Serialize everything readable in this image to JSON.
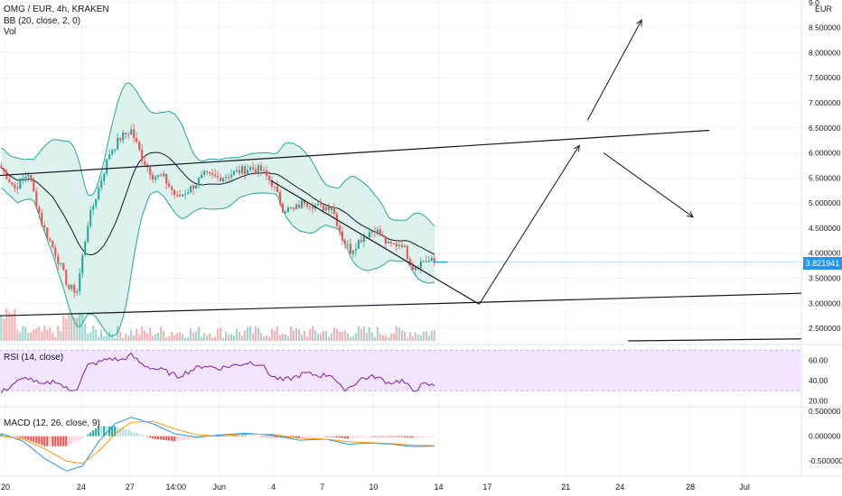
{
  "header": {
    "symbol": "OMG / EUR, 4h, KRAKEN",
    "bb_label": "BB (20, close, 2, 0)",
    "vol_label": "Vol",
    "currency": "EUR"
  },
  "current_price": "3.821941",
  "rsi_label": "RSI (14, close)",
  "macd_label": "MACD (12, 26, close, 9)",
  "colors": {
    "up": "#26a69a",
    "down": "#ef5350",
    "bb_band": "#26a69a",
    "bb_fill": "#d5efe9",
    "rsi_line": "#7b1fa2",
    "rsi_band": "#f3e5ff",
    "macd_line": "#2196f3",
    "signal_line": "#ff9800",
    "accent": "#2196f3"
  },
  "chart_data": [
    {
      "type": "candlestick",
      "x_tick_labels": [
        "20",
        "24",
        "27",
        "14:00",
        "Jun",
        "4",
        "7",
        "10",
        "14",
        "17",
        "21",
        "24",
        "28",
        "Jul"
      ],
      "y_tick_labels": [
        "2.500000",
        "3.000000",
        "3.500000",
        "4.000000",
        "4.500000",
        "5.000000",
        "5.500000",
        "6.000000",
        "6.500000",
        "7.000000",
        "7.500000",
        "8.000000",
        "8.500000",
        "9.0"
      ],
      "ylim": [
        2.25,
        9.05
      ],
      "y_ticks": [
        2.5,
        3.0,
        3.5,
        4.0,
        4.5,
        5.0,
        5.5,
        6.0,
        6.5,
        7.0,
        7.5,
        8.0,
        8.5,
        9.0
      ],
      "x_tick_bars": [
        2,
        30,
        48,
        65,
        81,
        101,
        119,
        138,
        162,
        180,
        209,
        229,
        255,
        275
      ],
      "bars_total": 296,
      "path_anchors": [
        {
          "bar": 0,
          "price": 5.7
        },
        {
          "bar": 5,
          "price": 5.3
        },
        {
          "bar": 10,
          "price": 5.6
        },
        {
          "bar": 15,
          "price": 4.6
        },
        {
          "bar": 20,
          "price": 4.0
        },
        {
          "bar": 25,
          "price": 3.3
        },
        {
          "bar": 28,
          "price": 3.25
        },
        {
          "bar": 32,
          "price": 4.6
        },
        {
          "bar": 36,
          "price": 5.3
        },
        {
          "bar": 40,
          "price": 6.0
        },
        {
          "bar": 44,
          "price": 6.3
        },
        {
          "bar": 48,
          "price": 6.45
        },
        {
          "bar": 52,
          "price": 5.9
        },
        {
          "bar": 56,
          "price": 5.55
        },
        {
          "bar": 60,
          "price": 5.5
        },
        {
          "bar": 65,
          "price": 5.1
        },
        {
          "bar": 70,
          "price": 5.3
        },
        {
          "bar": 75,
          "price": 5.55
        },
        {
          "bar": 80,
          "price": 5.5
        },
        {
          "bar": 86,
          "price": 5.6
        },
        {
          "bar": 92,
          "price": 5.7
        },
        {
          "bar": 96,
          "price": 5.65
        },
        {
          "bar": 100,
          "price": 5.4
        },
        {
          "bar": 104,
          "price": 4.9
        },
        {
          "bar": 108,
          "price": 4.85
        },
        {
          "bar": 112,
          "price": 5.05
        },
        {
          "bar": 118,
          "price": 4.9
        },
        {
          "bar": 122,
          "price": 4.95
        },
        {
          "bar": 126,
          "price": 4.3
        },
        {
          "bar": 129,
          "price": 4.05
        },
        {
          "bar": 133,
          "price": 4.3
        },
        {
          "bar": 138,
          "price": 4.5
        },
        {
          "bar": 143,
          "price": 4.15
        },
        {
          "bar": 148,
          "price": 4.2
        },
        {
          "bar": 152,
          "price": 3.72
        },
        {
          "bar": 156,
          "price": 3.85
        },
        {
          "bar": 160,
          "price": 3.82
        }
      ],
      "volume_note": "volume histogram at bottom of main pane",
      "drawings": [
        {
          "from": {
            "bar": 0,
            "price": 5.55
          },
          "to": {
            "bar": 262,
            "price": 6.45
          },
          "kind": "line"
        },
        {
          "from": {
            "bar": 0,
            "price": 2.75
          },
          "to": {
            "bar": 296,
            "price": 3.2
          },
          "kind": "line"
        },
        {
          "from": {
            "bar": 100,
            "price": 5.45
          },
          "to": {
            "bar": 177,
            "price": 2.98
          },
          "kind": "line"
        },
        {
          "from": {
            "bar": 177,
            "price": 2.98
          },
          "to": {
            "bar": 214,
            "price": 6.15
          },
          "kind": "arrow"
        },
        {
          "from": {
            "bar": 217,
            "price": 6.65
          },
          "to": {
            "bar": 237,
            "price": 8.65
          },
          "kind": "arrow"
        },
        {
          "from": {
            "bar": 223,
            "price": 6.0
          },
          "to": {
            "bar": 256,
            "price": 4.72
          },
          "kind": "arrow"
        },
        {
          "from": {
            "bar": 232,
            "price": 2.25
          },
          "to": {
            "bar": 296,
            "price": 2.29
          },
          "kind": "line"
        }
      ]
    },
    {
      "type": "line",
      "name": "RSI",
      "y_tick_labels": [
        "20.00",
        "40.00",
        "60.00"
      ],
      "y_ticks": [
        20,
        40,
        60
      ],
      "ylim": [
        16,
        72
      ],
      "band": [
        30,
        70
      ],
      "anchors": [
        {
          "bar": 0,
          "v": 28
        },
        {
          "bar": 5,
          "v": 38
        },
        {
          "bar": 10,
          "v": 43
        },
        {
          "bar": 15,
          "v": 35
        },
        {
          "bar": 20,
          "v": 40
        },
        {
          "bar": 25,
          "v": 30
        },
        {
          "bar": 28,
          "v": 33
        },
        {
          "bar": 32,
          "v": 55
        },
        {
          "bar": 36,
          "v": 58
        },
        {
          "bar": 40,
          "v": 62
        },
        {
          "bar": 44,
          "v": 60
        },
        {
          "bar": 48,
          "v": 65
        },
        {
          "bar": 52,
          "v": 56
        },
        {
          "bar": 56,
          "v": 52
        },
        {
          "bar": 60,
          "v": 50
        },
        {
          "bar": 65,
          "v": 44
        },
        {
          "bar": 70,
          "v": 50
        },
        {
          "bar": 75,
          "v": 55
        },
        {
          "bar": 80,
          "v": 52
        },
        {
          "bar": 86,
          "v": 55
        },
        {
          "bar": 92,
          "v": 58
        },
        {
          "bar": 96,
          "v": 56
        },
        {
          "bar": 100,
          "v": 44
        },
        {
          "bar": 104,
          "v": 40
        },
        {
          "bar": 108,
          "v": 43
        },
        {
          "bar": 112,
          "v": 47
        },
        {
          "bar": 118,
          "v": 45
        },
        {
          "bar": 122,
          "v": 46
        },
        {
          "bar": 126,
          "v": 31
        },
        {
          "bar": 129,
          "v": 34
        },
        {
          "bar": 133,
          "v": 42
        },
        {
          "bar": 138,
          "v": 44
        },
        {
          "bar": 143,
          "v": 38
        },
        {
          "bar": 148,
          "v": 40
        },
        {
          "bar": 152,
          "v": 30
        },
        {
          "bar": 156,
          "v": 36
        },
        {
          "bar": 160,
          "v": 35
        }
      ]
    },
    {
      "type": "line",
      "name": "MACD",
      "y_tick_labels": [
        "-0.500000",
        "0.000000",
        "0.500000"
      ],
      "y_ticks": [
        -0.5,
        0,
        0.5
      ],
      "ylim": [
        -0.75,
        0.52
      ],
      "macd_anchors": [
        {
          "bar": 0,
          "v": 0.05
        },
        {
          "bar": 8,
          "v": -0.1
        },
        {
          "bar": 16,
          "v": -0.45
        },
        {
          "bar": 24,
          "v": -0.7
        },
        {
          "bar": 30,
          "v": -0.6
        },
        {
          "bar": 36,
          "v": -0.1
        },
        {
          "bar": 42,
          "v": 0.25
        },
        {
          "bar": 48,
          "v": 0.38
        },
        {
          "bar": 56,
          "v": 0.25
        },
        {
          "bar": 64,
          "v": 0.05
        },
        {
          "bar": 72,
          "v": -0.02
        },
        {
          "bar": 80,
          "v": 0.02
        },
        {
          "bar": 90,
          "v": 0.06
        },
        {
          "bar": 100,
          "v": 0.02
        },
        {
          "bar": 110,
          "v": -0.08
        },
        {
          "bar": 120,
          "v": -0.06
        },
        {
          "bar": 128,
          "v": -0.16
        },
        {
          "bar": 136,
          "v": -0.14
        },
        {
          "bar": 144,
          "v": -0.16
        },
        {
          "bar": 152,
          "v": -0.21
        },
        {
          "bar": 160,
          "v": -0.2
        }
      ],
      "signal_anchors": [
        {
          "bar": 0,
          "v": 0.0
        },
        {
          "bar": 8,
          "v": -0.06
        },
        {
          "bar": 16,
          "v": -0.25
        },
        {
          "bar": 24,
          "v": -0.5
        },
        {
          "bar": 30,
          "v": -0.55
        },
        {
          "bar": 36,
          "v": -0.3
        },
        {
          "bar": 42,
          "v": 0.05
        },
        {
          "bar": 48,
          "v": 0.28
        },
        {
          "bar": 56,
          "v": 0.3
        },
        {
          "bar": 64,
          "v": 0.15
        },
        {
          "bar": 72,
          "v": 0.03
        },
        {
          "bar": 80,
          "v": 0.0
        },
        {
          "bar": 90,
          "v": 0.04
        },
        {
          "bar": 100,
          "v": 0.04
        },
        {
          "bar": 110,
          "v": -0.04
        },
        {
          "bar": 120,
          "v": -0.06
        },
        {
          "bar": 128,
          "v": -0.11
        },
        {
          "bar": 136,
          "v": -0.13
        },
        {
          "bar": 144,
          "v": -0.15
        },
        {
          "bar": 152,
          "v": -0.18
        },
        {
          "bar": 160,
          "v": -0.19
        }
      ]
    }
  ]
}
